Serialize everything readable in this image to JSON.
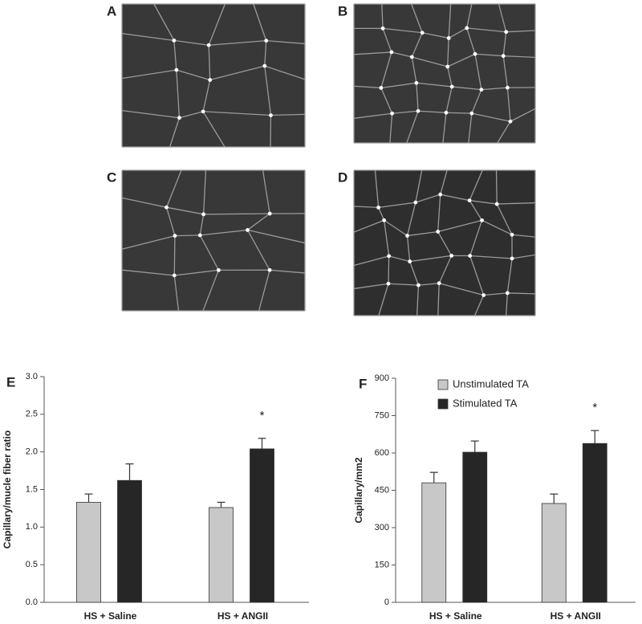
{
  "panels": {
    "labels": [
      "A",
      "B",
      "C",
      "D"
    ]
  },
  "chart_data": [
    {
      "type": "bar",
      "panel_label": "E",
      "y_label": "Capillary/mucle fiber ratio",
      "categories": [
        "HS + Saline",
        "HS + ANGII"
      ],
      "series": [
        {
          "color": "#c8c8c8",
          "values": [
            1.33,
            1.26
          ],
          "errors": [
            0.11,
            0.07
          ]
        },
        {
          "color": "#262626",
          "values": [
            1.62,
            2.04
          ],
          "errors": [
            0.22,
            0.14
          ]
        }
      ],
      "ylim": [
        0,
        3
      ],
      "yticks": [
        {
          "value": 0,
          "label": "0.0"
        },
        0.5,
        {
          "value": 1,
          "label": "1.0"
        },
        1.5,
        {
          "value": 2,
          "label": "2.0"
        },
        2.5,
        {
          "value": 3,
          "label": "3.0"
        }
      ],
      "annotations": [
        {
          "text": "*",
          "series": 1,
          "category": 1
        }
      ],
      "legend": "none"
    },
    {
      "type": "bar",
      "panel_label": "F",
      "y_label": "Capillary/mm2",
      "categories": [
        "HS + Saline",
        "HS + ANGII"
      ],
      "series": [
        {
          "name": "Unstimulated TA",
          "color": "#c8c8c8",
          "values": [
            480,
            397
          ],
          "errors": [
            42,
            38
          ]
        },
        {
          "name": "Stimulated TA",
          "color": "#262626",
          "values": [
            603,
            638
          ],
          "errors": [
            45,
            52
          ]
        }
      ],
      "ylim": [
        0,
        900
      ],
      "yticks": [
        0,
        150,
        300,
        450,
        600,
        750,
        900
      ],
      "annotations": [
        {
          "text": "*",
          "series": 1,
          "category": 1
        }
      ],
      "legend": "top-left"
    }
  ]
}
